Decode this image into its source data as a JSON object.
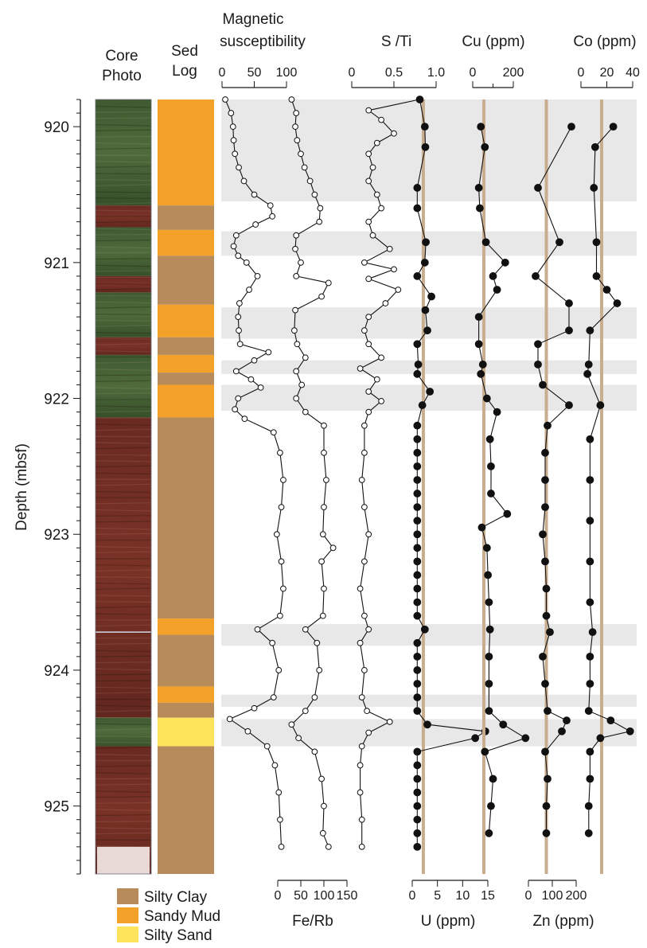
{
  "chart_data": {
    "type": "line",
    "title": "",
    "yaxis": {
      "label": "Depth (mbsf)",
      "range": [
        919.8,
        925.5
      ],
      "ticks": [
        920,
        921,
        922,
        923,
        924,
        925
      ],
      "tick_labels": [
        "920",
        "921",
        "922",
        "923",
        "924",
        "925"
      ],
      "inverted": true
    },
    "columns": {
      "core_photo": "Core\nPhoto",
      "sed_log": "Sed\nLog"
    },
    "lithology_legend": [
      {
        "label": "Silty Clay",
        "color": "#b78b5a"
      },
      {
        "label": "Sandy Mud",
        "color": "#f4a12a"
      },
      {
        "label": "Silty Sand",
        "color": "#fde45b"
      }
    ],
    "sed_log": [
      {
        "top": 919.8,
        "bottom": 920.58,
        "lith": "Sandy Mud"
      },
      {
        "top": 920.58,
        "bottom": 920.76,
        "lith": "Silty Clay"
      },
      {
        "top": 920.76,
        "bottom": 920.95,
        "lith": "Sandy Mud"
      },
      {
        "top": 920.95,
        "bottom": 921.31,
        "lith": "Silty Clay"
      },
      {
        "top": 921.31,
        "bottom": 921.55,
        "lith": "Sandy Mud"
      },
      {
        "top": 921.55,
        "bottom": 921.68,
        "lith": "Silty Clay"
      },
      {
        "top": 921.68,
        "bottom": 921.81,
        "lith": "Sandy Mud"
      },
      {
        "top": 921.81,
        "bottom": 921.9,
        "lith": "Silty Clay"
      },
      {
        "top": 921.9,
        "bottom": 922.14,
        "lith": "Sandy Mud"
      },
      {
        "top": 922.14,
        "bottom": 923.62,
        "lith": "Silty Clay"
      },
      {
        "top": 923.62,
        "bottom": 923.74,
        "lith": "Sandy Mud"
      },
      {
        "top": 923.74,
        "bottom": 924.12,
        "lith": "Silty Clay"
      },
      {
        "top": 924.12,
        "bottom": 924.24,
        "lith": "Sandy Mud"
      },
      {
        "top": 924.24,
        "bottom": 924.35,
        "lith": "Silty Clay"
      },
      {
        "top": 924.35,
        "bottom": 924.56,
        "lith": "Silty Sand"
      },
      {
        "top": 924.56,
        "bottom": 925.5,
        "lith": "Silty Clay"
      }
    ],
    "shaded_intervals": [
      [
        919.8,
        920.55
      ],
      [
        920.77,
        920.95
      ],
      [
        921.33,
        921.56
      ],
      [
        921.72,
        921.82
      ],
      [
        921.9,
        922.09
      ],
      [
        923.66,
        923.82
      ],
      [
        924.18,
        924.27
      ],
      [
        924.36,
        924.56
      ]
    ],
    "core_photo_bands": [
      {
        "top": 919.8,
        "bottom": 920.58,
        "tone": "green"
      },
      {
        "top": 920.58,
        "bottom": 920.74,
        "tone": "red"
      },
      {
        "top": 920.74,
        "bottom": 921.1,
        "tone": "green"
      },
      {
        "top": 921.1,
        "bottom": 921.22,
        "tone": "red"
      },
      {
        "top": 921.22,
        "bottom": 921.55,
        "tone": "green"
      },
      {
        "top": 921.55,
        "bottom": 921.68,
        "tone": "red"
      },
      {
        "top": 921.68,
        "bottom": 922.14,
        "tone": "green"
      },
      {
        "top": 922.14,
        "bottom": 924.35,
        "tone": "red"
      },
      {
        "top": 924.35,
        "bottom": 924.56,
        "tone": "green"
      },
      {
        "top": 924.56,
        "bottom": 925.5,
        "tone": "red"
      }
    ],
    "tracks": [
      {
        "id": "ms",
        "label": "Magnetic\nsusceptibility",
        "axis_position": "top",
        "range": [
          0,
          100
        ],
        "ticks": [
          0,
          50,
          100
        ],
        "tick_labels": [
          "0",
          "50",
          "100"
        ],
        "marker": "open",
        "baseline": null,
        "depth": [
          919.8,
          919.9,
          920.0,
          920.1,
          920.2,
          920.3,
          920.4,
          920.5,
          920.58,
          920.66,
          920.72,
          920.8,
          920.88,
          920.95,
          921.0,
          921.1,
          921.2,
          921.3,
          921.4,
          921.5,
          921.6,
          921.66,
          921.72,
          921.8,
          921.86,
          921.92,
          922.0,
          922.08,
          922.15,
          922.25,
          922.4,
          922.6,
          922.8,
          923.0,
          923.2,
          923.4,
          923.6,
          923.7,
          923.8,
          924.0,
          924.2,
          924.28,
          924.36,
          924.45,
          924.56,
          924.7,
          924.9,
          925.1,
          925.3
        ],
        "values": [
          5,
          14,
          17,
          18,
          20,
          26,
          34,
          50,
          75,
          78,
          52,
          22,
          18,
          25,
          38,
          55,
          42,
          27,
          25,
          26,
          28,
          72,
          50,
          22,
          45,
          60,
          25,
          20,
          35,
          80,
          90,
          95,
          92,
          85,
          92,
          95,
          90,
          55,
          78,
          88,
          80,
          50,
          12,
          40,
          70,
          82,
          88,
          90,
          92
        ]
      },
      {
        "id": "ferb",
        "label": "Fe/Rb",
        "axis_position": "bottom",
        "range": [
          0,
          150
        ],
        "ticks": [
          0,
          50,
          100,
          150
        ],
        "tick_labels": [
          "0",
          "50",
          "100",
          "150"
        ],
        "marker": "open",
        "baseline": null,
        "depth": [
          919.8,
          919.9,
          920.0,
          920.1,
          920.2,
          920.3,
          920.4,
          920.5,
          920.6,
          920.7,
          920.8,
          920.9,
          921.0,
          921.1,
          921.15,
          921.25,
          921.35,
          921.5,
          921.6,
          921.7,
          921.8,
          921.9,
          922.0,
          922.1,
          922.2,
          922.4,
          922.6,
          922.8,
          923.0,
          923.1,
          923.2,
          923.4,
          923.6,
          923.7,
          923.8,
          924.0,
          924.2,
          924.3,
          924.4,
          924.5,
          924.6,
          924.8,
          925.0,
          925.2,
          925.3
        ],
        "values": [
          30,
          40,
          38,
          42,
          50,
          58,
          70,
          80,
          92,
          90,
          40,
          38,
          50,
          40,
          110,
          95,
          38,
          36,
          42,
          60,
          40,
          52,
          40,
          60,
          100,
          100,
          105,
          100,
          98,
          120,
          95,
          100,
          98,
          60,
          85,
          90,
          80,
          60,
          30,
          45,
          80,
          95,
          100,
          98,
          110
        ]
      },
      {
        "id": "sti",
        "label": "S /Ti",
        "axis_position": "top",
        "range": [
          0,
          1.0
        ],
        "ticks": [
          0,
          0.5,
          1.0
        ],
        "tick_labels": [
          "0",
          "0.5",
          "1.0"
        ],
        "marker": "open",
        "baseline": null,
        "depth": [
          919.8,
          919.88,
          919.95,
          920.05,
          920.12,
          920.2,
          920.3,
          920.4,
          920.5,
          920.6,
          920.7,
          920.8,
          920.9,
          921.0,
          921.05,
          921.12,
          921.2,
          921.3,
          921.4,
          921.5,
          921.6,
          921.7,
          921.78,
          921.86,
          921.95,
          922.02,
          922.1,
          922.2,
          922.4,
          922.6,
          922.8,
          923.0,
          923.2,
          923.4,
          923.6,
          923.7,
          923.8,
          924.0,
          924.2,
          924.3,
          924.38,
          924.46,
          924.56,
          924.7,
          924.9,
          925.1,
          925.3
        ],
        "values": [
          0.8,
          0.2,
          0.35,
          0.5,
          0.3,
          0.2,
          0.25,
          0.2,
          0.3,
          0.35,
          0.2,
          0.25,
          0.45,
          0.15,
          0.5,
          0.2,
          0.55,
          0.4,
          0.2,
          0.15,
          0.2,
          0.35,
          0.1,
          0.3,
          0.2,
          0.35,
          0.2,
          0.15,
          0.15,
          0.12,
          0.15,
          0.2,
          0.15,
          0.1,
          0.15,
          0.2,
          0.1,
          0.15,
          0.12,
          0.18,
          0.45,
          0.2,
          0.12,
          0.1,
          0.1,
          0.12,
          0.12
        ]
      },
      {
        "id": "u",
        "label": "U (ppm)",
        "axis_position": "bottom",
        "range": [
          0,
          15
        ],
        "ticks": [
          0,
          5,
          10,
          15
        ],
        "tick_labels": [
          "0",
          "5",
          "10",
          "15"
        ],
        "marker": "filled",
        "baseline": 2.2,
        "depth": [
          919.8,
          920.0,
          920.15,
          920.45,
          920.6,
          920.85,
          921.0,
          921.1,
          921.25,
          921.35,
          921.5,
          921.6,
          921.75,
          921.82,
          921.95,
          922.05,
          922.2,
          922.3,
          922.4,
          922.5,
          922.6,
          922.7,
          922.8,
          922.9,
          923.0,
          923.1,
          923.2,
          923.3,
          923.4,
          923.5,
          923.6,
          923.7,
          923.8,
          923.9,
          924.0,
          924.1,
          924.2,
          924.3,
          924.4,
          924.45,
          924.5,
          924.6,
          924.7,
          924.8,
          924.9,
          925.0,
          925.1,
          925.2,
          925.3
        ],
        "values": [
          1.5,
          2.5,
          2.6,
          1.0,
          1.0,
          2.7,
          2.5,
          1.0,
          3.8,
          2.6,
          3.0,
          1.0,
          1.2,
          1.0,
          3.5,
          2.0,
          1.0,
          1.0,
          1.0,
          1.0,
          1.0,
          1.0,
          1.0,
          1.0,
          1.0,
          1.0,
          1.0,
          1.0,
          1.0,
          1.0,
          1.0,
          2.5,
          1.0,
          1.0,
          1.0,
          1.0,
          1.0,
          1.0,
          3.0,
          14.5,
          12.5,
          1.0,
          1.0,
          1.0,
          1.0,
          1.0,
          1.0,
          1.0,
          1.0
        ]
      },
      {
        "id": "cu",
        "label": "Cu (ppm)",
        "axis_position": "top",
        "range": [
          0,
          200
        ],
        "ticks": [
          0,
          200
        ],
        "tick_labels": [
          "0",
          "200"
        ],
        "marker": "filled",
        "baseline": 55,
        "depth": [
          920.0,
          920.15,
          920.45,
          920.6,
          920.85,
          921.0,
          921.1,
          921.2,
          921.4,
          921.6,
          921.75,
          921.82,
          922.0,
          922.1,
          922.3,
          922.5,
          922.7,
          922.85,
          922.95,
          923.1,
          923.3,
          923.5,
          923.7,
          923.9,
          924.1,
          924.3,
          924.4,
          924.5,
          924.6,
          924.8,
          925.0,
          925.2
        ],
        "values": [
          40,
          60,
          30,
          35,
          65,
          160,
          100,
          120,
          30,
          30,
          50,
          40,
          70,
          120,
          85,
          90,
          90,
          170,
          45,
          70,
          75,
          80,
          85,
          80,
          80,
          80,
          150,
          260,
          60,
          100,
          90,
          80
        ]
      },
      {
        "id": "zn",
        "label": "Zn (ppm)",
        "axis_position": "bottom",
        "range": [
          0,
          200
        ],
        "ticks": [
          0,
          100,
          200
        ],
        "tick_labels": [
          "0",
          "100",
          "200"
        ],
        "marker": "filled",
        "baseline": 75,
        "depth": [
          920.0,
          920.45,
          920.85,
          921.1,
          921.3,
          921.5,
          921.6,
          921.75,
          921.9,
          922.05,
          922.2,
          922.4,
          922.6,
          922.8,
          923.0,
          923.2,
          923.4,
          923.6,
          923.72,
          923.9,
          924.1,
          924.3,
          924.37,
          924.45,
          924.6,
          924.8,
          925.0,
          925.2
        ],
        "values": [
          180,
          40,
          130,
          30,
          170,
          170,
          40,
          40,
          60,
          170,
          80,
          70,
          70,
          70,
          60,
          70,
          75,
          75,
          90,
          60,
          70,
          80,
          160,
          140,
          70,
          80,
          75,
          75
        ]
      },
      {
        "id": "co",
        "label": "Co (ppm)",
        "axis_position": "top",
        "range": [
          0,
          40
        ],
        "ticks": [
          0,
          20,
          40
        ],
        "tick_labels": [
          "0",
          "20",
          "40"
        ],
        "marker": "filled",
        "baseline": 16,
        "depth": [
          920.0,
          920.15,
          920.45,
          920.85,
          921.1,
          921.2,
          921.3,
          921.5,
          921.75,
          921.82,
          922.05,
          922.3,
          922.6,
          922.9,
          923.2,
          923.5,
          923.72,
          923.9,
          924.1,
          924.3,
          924.37,
          924.45,
          924.5,
          924.6,
          924.8,
          925.0,
          925.2
        ],
        "values": [
          25,
          11,
          10,
          12,
          12,
          20,
          28,
          7,
          6,
          5,
          15,
          7,
          7,
          7,
          7,
          7,
          9,
          7,
          7,
          6,
          23,
          38,
          15,
          7,
          7,
          6,
          6
        ]
      }
    ]
  }
}
